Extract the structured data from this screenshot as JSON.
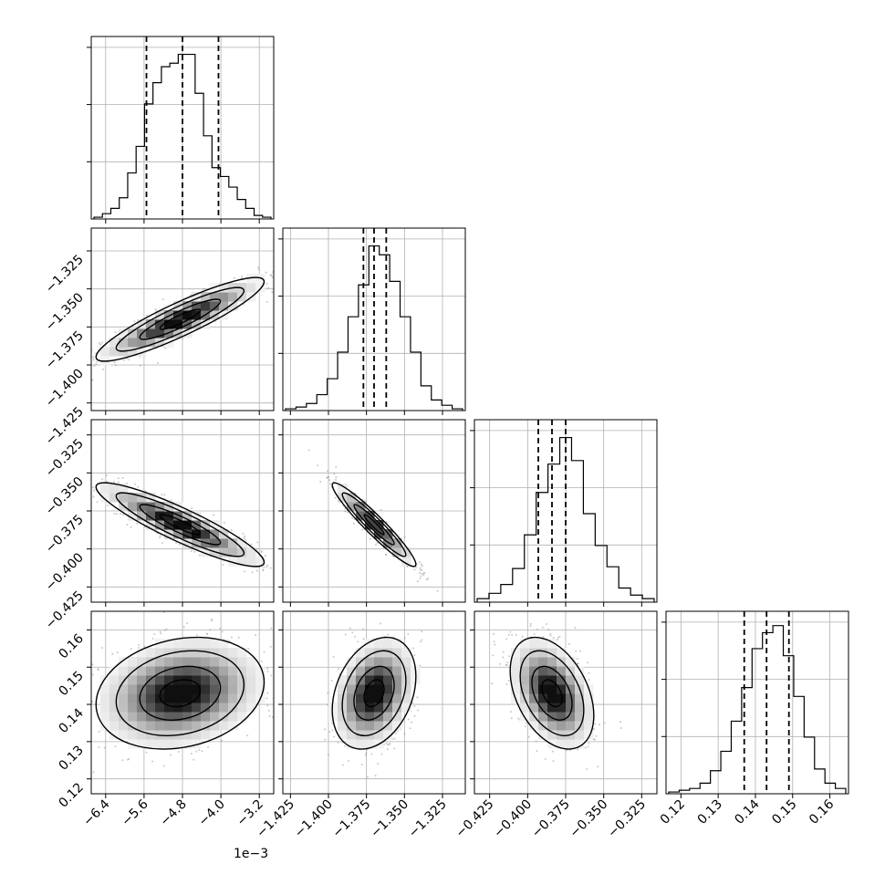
{
  "chart_data": {
    "type": "corner",
    "grid": true,
    "ndim": 4,
    "offset_text": "1e−3",
    "parameters": [
      {
        "range": [
          -6.7,
          -2.9
        ],
        "ticks": [
          -6.4,
          -5.6,
          -4.8,
          -4.0,
          -3.2
        ],
        "tick_labels": [
          "−6.4",
          "−5.6",
          "−4.8",
          "−4.0",
          "−3.2"
        ],
        "quantiles": [
          -5.55,
          -4.8,
          -4.05
        ],
        "mean": -4.85,
        "sd": 0.7,
        "hist": [
          0.01,
          0.03,
          0.06,
          0.12,
          0.26,
          0.41,
          0.65,
          0.77,
          0.86,
          0.88,
          0.93,
          0.93,
          0.71,
          0.47,
          0.29,
          0.24,
          0.18,
          0.11,
          0.06,
          0.02,
          0.01
        ]
      },
      {
        "range": [
          -1.43,
          -1.31
        ],
        "ticks": [
          -1.425,
          -1.4,
          -1.375,
          -1.35,
          -1.325
        ],
        "tick_labels": [
          "−1.425",
          "−1.400",
          "−1.375",
          "−1.350",
          "−1.325"
        ],
        "quantiles": [
          -1.377,
          -1.37,
          -1.362
        ],
        "mean": -1.37,
        "sd": 0.011,
        "hist": [
          0.01,
          0.02,
          0.04,
          0.09,
          0.18,
          0.33,
          0.53,
          0.71,
          0.93,
          0.88,
          0.73,
          0.53,
          0.33,
          0.14,
          0.06,
          0.03,
          0.01
        ]
      },
      {
        "range": [
          -0.435,
          -0.315
        ],
        "ticks": [
          -0.425,
          -0.4,
          -0.375,
          -0.35,
          -0.325
        ],
        "tick_labels": [
          "−0.425",
          "−0.400",
          "−0.375",
          "−0.350",
          "−0.325"
        ],
        "quantiles": [
          -0.393,
          -0.384,
          -0.375
        ],
        "mean": -0.384,
        "sd": 0.011,
        "hist": [
          0.02,
          0.05,
          0.1,
          0.19,
          0.38,
          0.62,
          0.78,
          0.93,
          0.8,
          0.5,
          0.32,
          0.2,
          0.08,
          0.04,
          0.02
        ]
      },
      {
        "range": [
          0.116,
          0.165
        ],
        "ticks": [
          0.12,
          0.13,
          0.14,
          0.15,
          0.16
        ],
        "tick_labels": [
          "0.12",
          "0.13",
          "0.14",
          "0.15",
          "0.16"
        ],
        "quantiles": [
          0.137,
          0.143,
          0.149
        ],
        "mean": 0.143,
        "sd": 0.006,
        "hist": [
          0.01,
          0.02,
          0.03,
          0.06,
          0.13,
          0.24,
          0.41,
          0.6,
          0.82,
          0.91,
          0.95,
          0.78,
          0.55,
          0.32,
          0.14,
          0.06,
          0.03
        ]
      }
    ],
    "correlations": [
      [
        1.0,
        0.9,
        -0.9,
        0.2
      ],
      [
        0.9,
        1.0,
        -0.95,
        0.3
      ],
      [
        -0.9,
        -0.95,
        1.0,
        -0.4
      ],
      [
        0.2,
        0.3,
        -0.4,
        1.0
      ]
    ]
  }
}
